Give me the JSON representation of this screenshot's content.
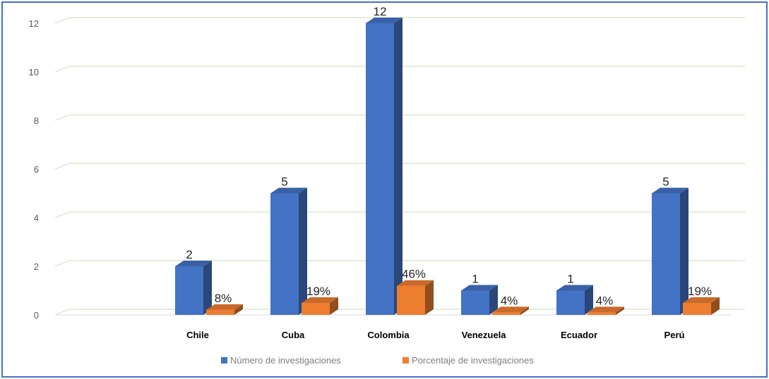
{
  "chart_data": {
    "type": "bar",
    "title": "",
    "xlabel": "",
    "ylabel": "",
    "categories": [
      "Chile",
      "Cuba",
      "Colombia",
      "Venezuela",
      "Ecuador",
      "Perú"
    ],
    "ylim": [
      0,
      12
    ],
    "yticks": [
      0,
      2,
      4,
      6,
      8,
      10,
      12
    ],
    "grid": true,
    "legend_position": "bottom",
    "three_d": true,
    "series": [
      {
        "name": "Número de investigaciones",
        "values": [
          2,
          5,
          12,
          1,
          1,
          5
        ],
        "labels": [
          "2",
          "5",
          "12",
          "1",
          "1",
          "5"
        ],
        "color": "#4472C4"
      },
      {
        "name": "Porcentaje de investigaciones",
        "values": [
          0.08,
          0.19,
          0.46,
          0.04,
          0.04,
          0.19
        ],
        "labels": [
          "8%",
          "19%",
          "46%",
          "4%",
          "4%",
          "19%"
        ],
        "color": "#ED7D31"
      }
    ],
    "gridline_color": "#c6e0b4",
    "border_color": "#4472C4"
  }
}
